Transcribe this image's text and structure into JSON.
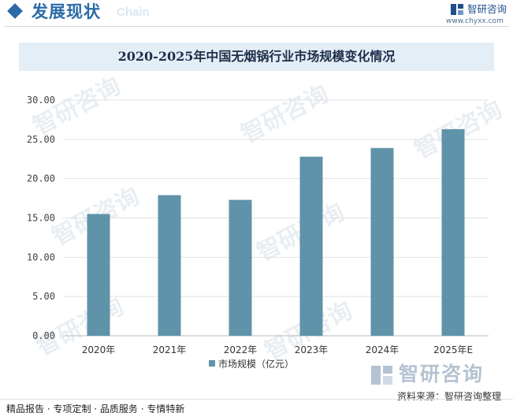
{
  "header": {
    "title": "发展现状",
    "ghost_text": "Chain"
  },
  "logo": {
    "name": "智研咨询",
    "url": "www.chyxx.com",
    "watermark_text": "智研咨询"
  },
  "colors": {
    "accent": "#2b6aa8",
    "bar": "#5f93aa",
    "title_band": "#e3eef7"
  },
  "icons": {
    "header_marker": "diamond-icon",
    "logo_mark": "zhiyan-logo-icon"
  },
  "chart_data": {
    "type": "bar",
    "title": "2020-2025年中国无烟锅行业市场规模变化情况",
    "categories": [
      "2020年",
      "2021年",
      "2022年",
      "2023年",
      "2024年",
      "2025年E"
    ],
    "series": [
      {
        "name": "市场规模（亿元）",
        "values": [
          15.5,
          17.9,
          17.3,
          22.8,
          23.9,
          26.3
        ]
      }
    ],
    "xlabel": "",
    "ylabel": "",
    "ylim": [
      0,
      30
    ],
    "yticks": [
      "0.00",
      "5.00",
      "10.00",
      "15.00",
      "20.00",
      "25.00",
      "30.00"
    ],
    "grid": true,
    "legend_position": "bottom-center"
  },
  "source_text": "资料来源：智研咨询整理",
  "footer_text": "精品报告 · 专项定制 · 品质服务 · 专情特新"
}
